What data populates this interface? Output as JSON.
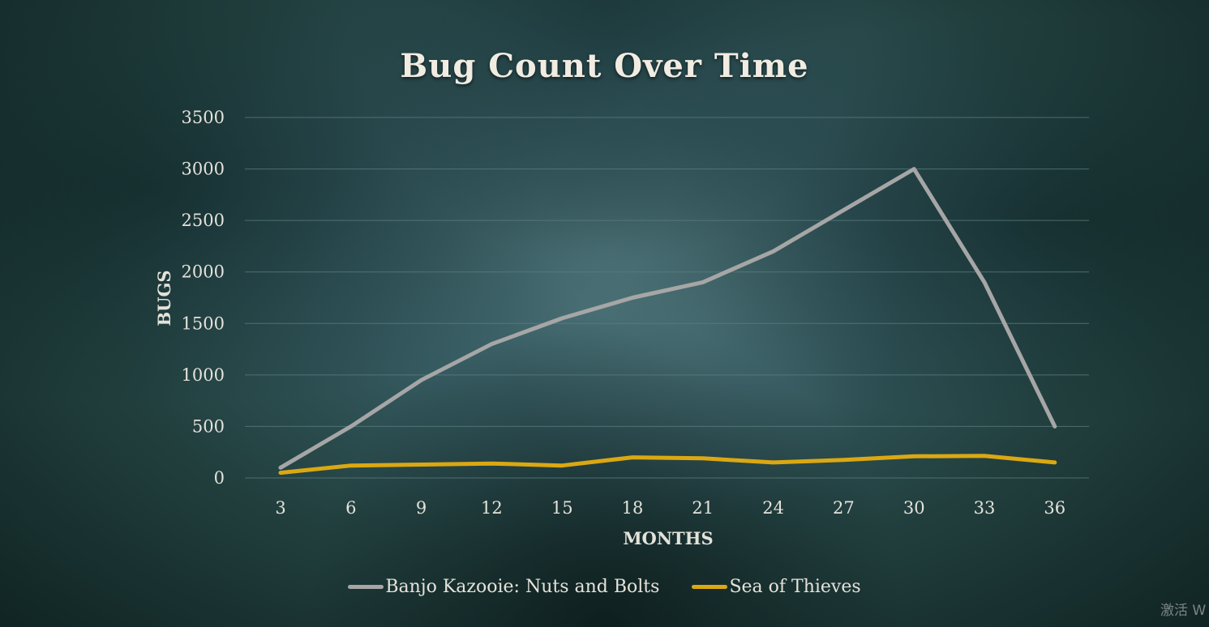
{
  "watermark": "激活 W",
  "colors": {
    "series_1": "#a6a6a6",
    "series_2": "#dba812",
    "grid": "#5d7f81",
    "text": "#e4e2da"
  },
  "chart_data": {
    "type": "line",
    "title": "Bug Count Over Time",
    "xlabel": "MONTHS",
    "ylabel": "BUGS",
    "x": [
      3,
      6,
      9,
      12,
      15,
      18,
      21,
      24,
      27,
      30,
      33,
      36
    ],
    "yticks": [
      0,
      500,
      1000,
      1500,
      2000,
      2500,
      3000,
      3500
    ],
    "ylim": [
      0,
      3500
    ],
    "grid": true,
    "legend_position": "bottom",
    "series": [
      {
        "name": "Banjo Kazooie: Nuts and Bolts",
        "values": [
          100,
          500,
          950,
          1300,
          1550,
          1750,
          1900,
          2200,
          2600,
          3000,
          1900,
          500
        ]
      },
      {
        "name": "Sea of Thieves",
        "values": [
          50,
          120,
          130,
          140,
          120,
          200,
          190,
          150,
          175,
          210,
          215,
          150
        ]
      }
    ]
  }
}
